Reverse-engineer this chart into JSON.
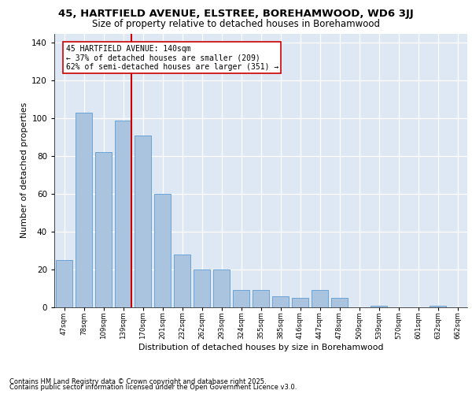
{
  "title1": "45, HARTFIELD AVENUE, ELSTREE, BOREHAMWOOD, WD6 3JJ",
  "title2": "Size of property relative to detached houses in Borehamwood",
  "xlabel": "Distribution of detached houses by size in Borehamwood",
  "ylabel": "Number of detached properties",
  "categories": [
    "47sqm",
    "78sqm",
    "109sqm",
    "139sqm",
    "170sqm",
    "201sqm",
    "232sqm",
    "262sqm",
    "293sqm",
    "324sqm",
    "355sqm",
    "385sqm",
    "416sqm",
    "447sqm",
    "478sqm",
    "509sqm",
    "539sqm",
    "570sqm",
    "601sqm",
    "632sqm",
    "662sqm"
  ],
  "values": [
    25,
    103,
    82,
    99,
    91,
    60,
    28,
    20,
    20,
    9,
    9,
    6,
    5,
    9,
    5,
    0,
    1,
    0,
    0,
    1,
    0
  ],
  "bar_color": "#aac4e0",
  "bar_edgecolor": "#5b9bd5",
  "background_color": "#dde8f4",
  "grid_color": "#ffffff",
  "vline_color": "#cc0000",
  "annotation_line1": "45 HARTFIELD AVENUE: 140sqm",
  "annotation_line2": "← 37% of detached houses are smaller (209)",
  "annotation_line3": "62% of semi-detached houses are larger (351) →",
  "annotation_box_edgecolor": "#cc0000",
  "ylim": [
    0,
    145
  ],
  "yticks": [
    0,
    20,
    40,
    60,
    80,
    100,
    120,
    140
  ],
  "footer1": "Contains HM Land Registry data © Crown copyright and database right 2025.",
  "footer2": "Contains public sector information licensed under the Open Government Licence v3.0."
}
